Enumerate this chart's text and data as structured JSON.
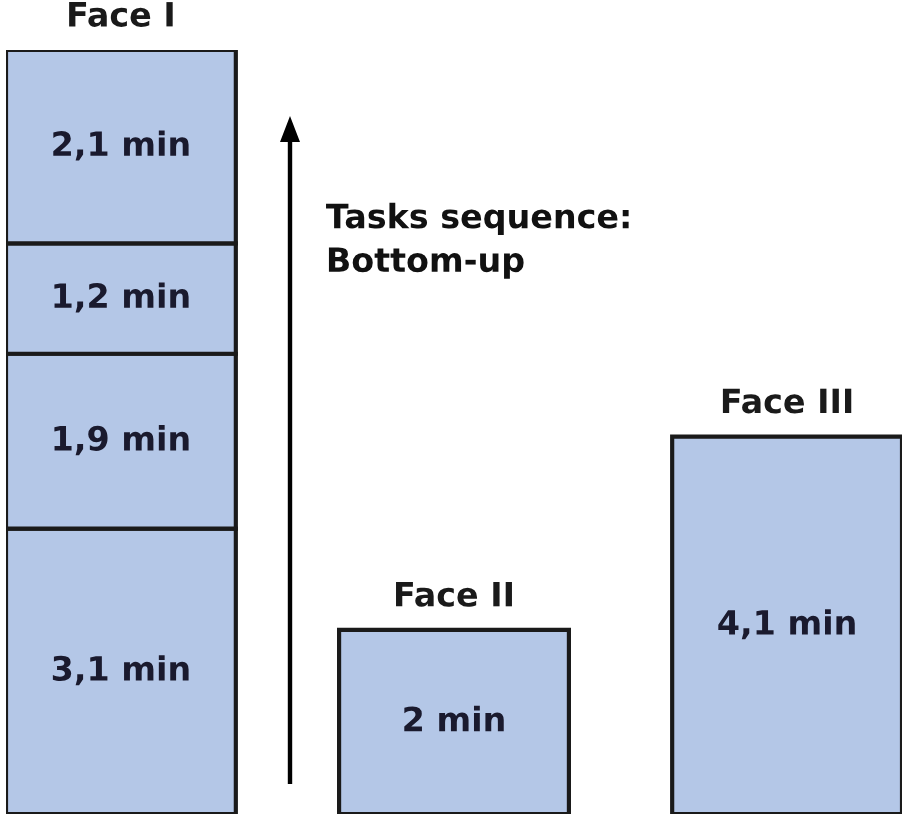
{
  "chart_data": {
    "type": "bar",
    "stacked": true,
    "categories": [
      "Face I",
      "Face II",
      "Face III"
    ],
    "series": [
      {
        "color": "#b4c7e7",
        "values": [
          3.1,
          2,
          4.1
        ],
        "value_labels": [
          "3,1 min",
          "2 min",
          "4,1 min"
        ]
      },
      {
        "color": "#b4c7e7",
        "values": [
          1.9,
          null,
          null
        ],
        "value_labels": [
          "1,9 min",
          null,
          null
        ]
      },
      {
        "color": "#b4c7e7",
        "values": [
          1.2,
          null,
          null
        ],
        "value_labels": [
          "1,2 min",
          null,
          null
        ]
      },
      {
        "color": "#b4c7e7",
        "values": [
          2.1,
          null,
          null
        ],
        "value_labels": [
          "2,1 min",
          null,
          null
        ]
      }
    ],
    "annotations": [
      "Tasks sequence:\nBottom-up"
    ]
  }
}
